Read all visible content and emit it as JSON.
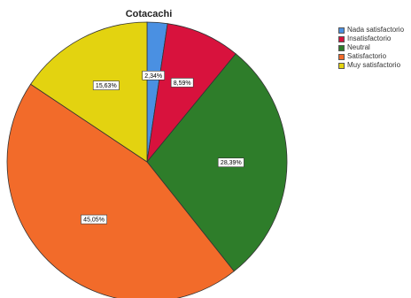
{
  "chart_data": {
    "type": "pie",
    "title": "Cotacachi",
    "legend_position": "top-right",
    "slices": [
      {
        "name": "Nada satisfactorio",
        "value": 2.34,
        "label": "2,34%",
        "color": "#4a90e2"
      },
      {
        "name": "Insatisfactorio",
        "value": 8.59,
        "label": "8,59%",
        "color": "#d8123d"
      },
      {
        "name": "Neutral",
        "value": 28.39,
        "label": "28,39%",
        "color": "#2e7d2a"
      },
      {
        "name": "Satisfactorio",
        "value": 45.05,
        "label": "45,05%",
        "color": "#f26b2a"
      },
      {
        "name": "Muy satisfactorio",
        "value": 15.63,
        "label": "15,63%",
        "color": "#e3d310"
      }
    ]
  }
}
